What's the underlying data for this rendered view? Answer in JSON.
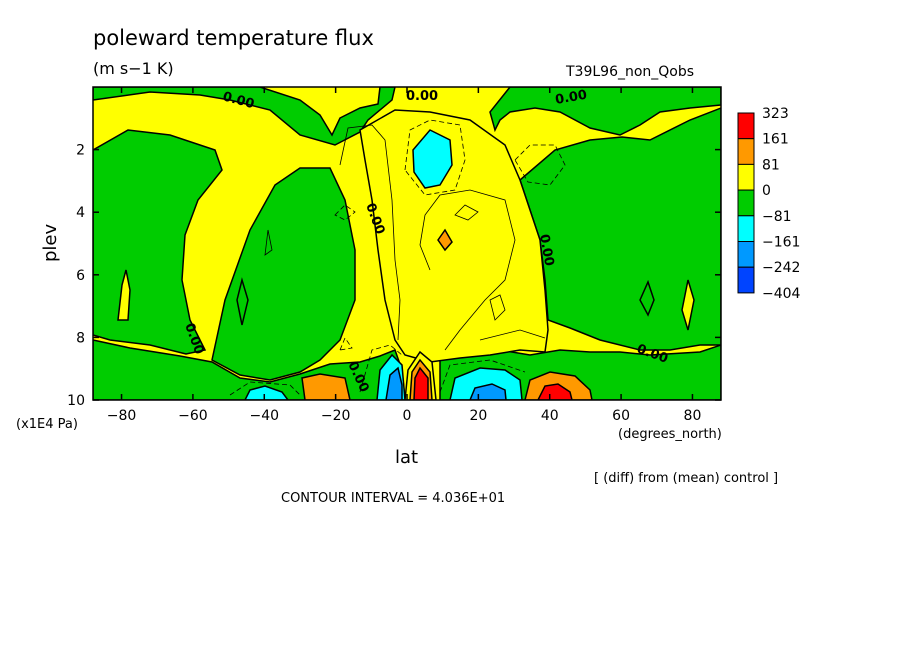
{
  "chart_data": {
    "type": "heatmap",
    "title": "poleward temperature flux",
    "units": "(m s−1 K)",
    "run_label": "T39L96_non_Qobs",
    "xlabel": "lat",
    "x_units": "(degrees_north)",
    "ylabel": "plev",
    "y_units": "(x1E4 Pa)",
    "xlim": [
      -88,
      88
    ],
    "ylim": [
      10,
      0
    ],
    "x_ticks": [
      -80,
      -60,
      -40,
      -20,
      0,
      20,
      40,
      60,
      80
    ],
    "x_tick_labels": [
      "−80",
      "−60",
      "−40",
      "−20",
      "0",
      "20",
      "40",
      "60",
      "80"
    ],
    "y_ticks": [
      2,
      4,
      6,
      8,
      10
    ],
    "y_tick_labels": [
      "2",
      "4",
      "6",
      "8",
      "10"
    ],
    "colorbar": {
      "labels": [
        "323",
        "161",
        "81",
        "0",
        "−81",
        "−161",
        "−242",
        "−404"
      ],
      "colors": [
        "#ff0000",
        "#ff9900",
        "#ffff00",
        "#00cc00",
        "#00ffff",
        "#0099ff",
        "#0044ff"
      ]
    },
    "contour_labels": [
      "0.00",
      "0.00",
      "0.00",
      "0.00",
      "0.00",
      "0.00",
      "0.00",
      "0.00"
    ],
    "contour_interval": "CONTOUR INTERVAL = 4.036E+01",
    "footnote": "[ (diff) from (mean) control ]",
    "regions": [
      {
        "level": "negative-weak",
        "color": "green",
        "lat": [
          -88,
          -62
        ],
        "plev": [
          0.8,
          8.5
        ]
      },
      {
        "level": "negative-weak",
        "color": "green",
        "lat": [
          -56,
          -30
        ],
        "plev": [
          2.5,
          8.8
        ]
      },
      {
        "level": "negative-weak",
        "color": "green",
        "lat": [
          -30,
          0
        ],
        "plev": [
          0,
          1.4
        ]
      },
      {
        "level": "negative-moderate",
        "color": "cyan",
        "lat": [
          2,
          13
        ],
        "plev": [
          1.4,
          3.0
        ]
      },
      {
        "level": "positive-weak",
        "color": "yellow",
        "lat": [
          -22,
          30
        ],
        "plev": [
          1.0,
          9.0
        ]
      },
      {
        "level": "negative-weak",
        "color": "green",
        "lat": [
          30,
          88
        ],
        "plev": [
          0,
          7.8
        ]
      },
      {
        "level": "positive-moderate",
        "color": "orange",
        "lat": [
          -28,
          -16
        ],
        "plev": [
          9.0,
          10
        ]
      },
      {
        "level": "negative-moderate",
        "color": "cyan",
        "lat": [
          -44,
          -36
        ],
        "plev": [
          9.5,
          10
        ]
      },
      {
        "level": "negative-strong",
        "color": "blue",
        "lat": [
          -6,
          -1
        ],
        "plev": [
          8.9,
          10
        ]
      },
      {
        "level": "positive-strong",
        "color": "red",
        "lat": [
          2,
          8
        ],
        "plev": [
          8.6,
          10
        ]
      },
      {
        "level": "negative-moderate",
        "color": "cyan",
        "lat": [
          13,
          30
        ],
        "plev": [
          9.0,
          10
        ]
      },
      {
        "level": "positive-moderate",
        "color": "orange",
        "lat": [
          34,
          48
        ],
        "plev": [
          9.0,
          10
        ]
      },
      {
        "level": "positive-strong",
        "color": "red",
        "lat": [
          38,
          44
        ],
        "plev": [
          9.6,
          10
        ]
      }
    ]
  }
}
